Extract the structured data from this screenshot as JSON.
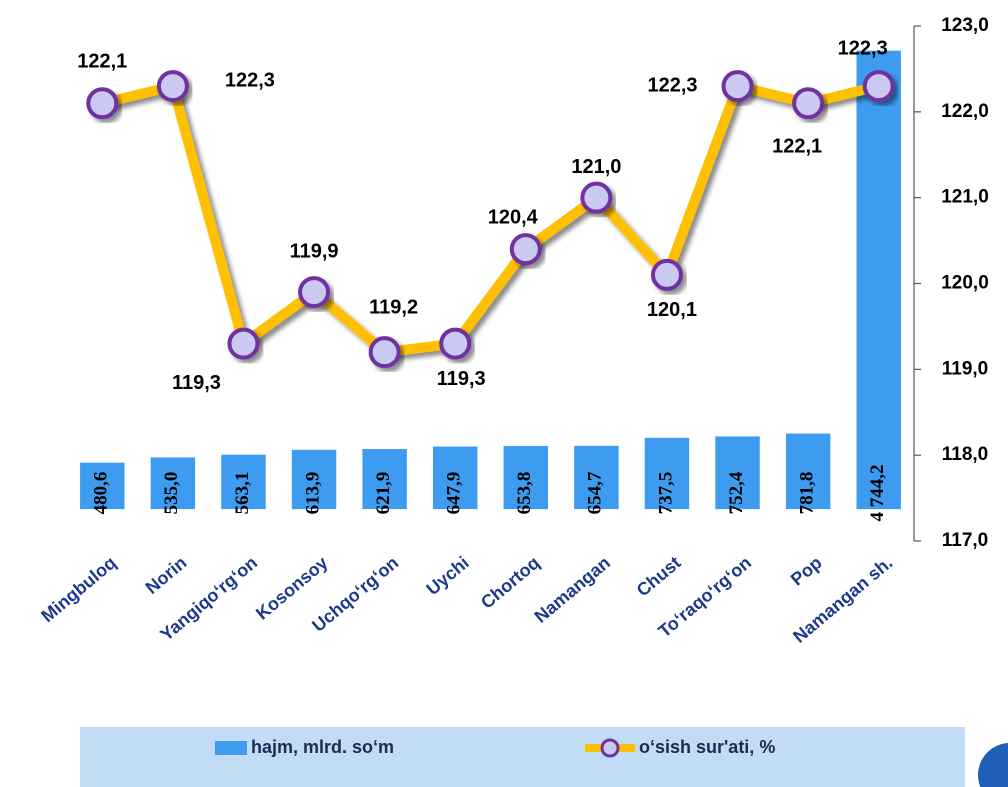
{
  "chart_data": {
    "type": "combo",
    "categories": [
      "Mingbuloq",
      "Norin",
      "Yangiqo‘rg‘on",
      "Kosonsoy",
      "Uchqo‘rg‘on",
      "Uychi",
      "Chortoq",
      "Namangan",
      "Chust",
      "To‘raqo‘rg‘on",
      "Pop",
      "Namangan sh."
    ],
    "series": [
      {
        "name": "hajm, mlrd. so‘m",
        "type": "bar",
        "color": "#3d9bf0",
        "values": [
          480.6,
          535.0,
          563.1,
          613.9,
          621.9,
          647.9,
          653.8,
          654.7,
          737.5,
          752.4,
          781.8,
          4744.2
        ],
        "value_labels": [
          "480,6",
          "535,0",
          "563,1",
          "613,9",
          "621,9",
          "647,9",
          "653,8",
          "654,7",
          "737,5",
          "752,4",
          "781,8",
          "4 744,2"
        ]
      },
      {
        "name": "o‘sish sur'ati, %",
        "type": "line",
        "axis": "y2",
        "color": "#ffc000",
        "marker_color": "#c9c9f2",
        "marker_edge": "#7030a0",
        "values": [
          122.1,
          122.3,
          119.3,
          119.9,
          119.2,
          119.3,
          120.4,
          121.0,
          120.1,
          122.3,
          122.1,
          122.3
        ],
        "value_labels": [
          "122,1",
          "122,3",
          "119,3",
          "119,9",
          "119,2",
          "119,3",
          "120,4",
          "121,0",
          "120,1",
          "122,3",
          "122,1",
          "122,3"
        ]
      }
    ],
    "ylim": [
      -330,
      5000
    ],
    "y2lim": [
      117,
      123
    ],
    "y2ticks": [
      {
        "value": 117,
        "label": "117,0"
      },
      {
        "value": 118,
        "label": "118,0"
      },
      {
        "value": 119,
        "label": "119,0"
      },
      {
        "value": 120,
        "label": "120,0"
      },
      {
        "value": 121,
        "label": "121,0"
      },
      {
        "value": 122,
        "label": "122,0"
      },
      {
        "value": 123,
        "label": "123,0"
      }
    ],
    "legend": "bottom"
  }
}
